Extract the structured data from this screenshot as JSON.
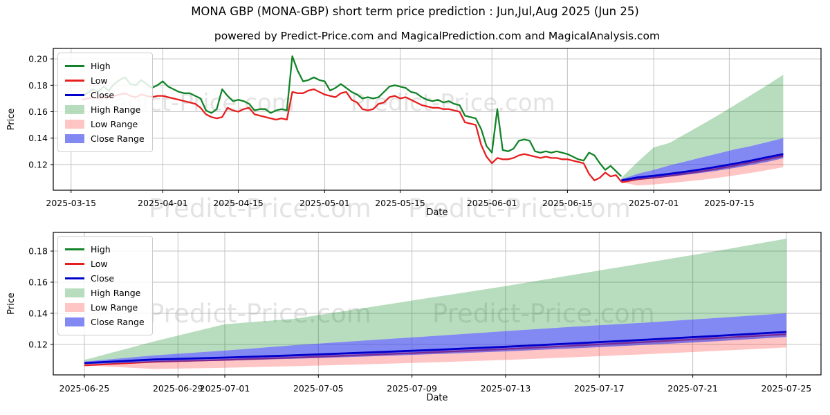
{
  "header": {
    "title": "MONA GBP (MONA-GBP) short term price prediction : Jun,Jul,Aug 2025 (Jun 25)",
    "subtitle": "powered by Predict-Price.com and MagicalPrediction.com and MagicalAnalysis.com"
  },
  "watermark": {
    "text": "Predict-Price.com"
  },
  "colors": {
    "high": "#128428",
    "low": "#e81e1e",
    "close": "#0000cd",
    "high_range": "rgba(0,134,20,0.28)",
    "low_range": "rgba(255,40,40,0.27)",
    "close_range": "rgba(42,52,232,0.58)",
    "grid": "#c2c2c2",
    "spine": "#000000",
    "watermark": "rgba(128,128,128,0.22)"
  },
  "legend": {
    "items": [
      {
        "label": "High",
        "type": "line",
        "color": "high"
      },
      {
        "label": "Low",
        "type": "line",
        "color": "low"
      },
      {
        "label": "Close",
        "type": "line",
        "color": "close"
      },
      {
        "label": "High Range",
        "type": "patch",
        "color": "high_range"
      },
      {
        "label": "Low Range",
        "type": "patch",
        "color": "low_range"
      },
      {
        "label": "Close Range",
        "type": "patch",
        "color": "close_range"
      }
    ]
  },
  "series": {
    "x_unit": "days since 2025-03-15",
    "high_history": [
      [
        2,
        0.172
      ],
      [
        3,
        0.174
      ],
      [
        4,
        0.177
      ],
      [
        5,
        0.175
      ],
      [
        6,
        0.179
      ],
      [
        7,
        0.176
      ],
      [
        8,
        0.181
      ],
      [
        9,
        0.184
      ],
      [
        10,
        0.186
      ],
      [
        11,
        0.181
      ],
      [
        12,
        0.18
      ],
      [
        13,
        0.184
      ],
      [
        14,
        0.181
      ],
      [
        15,
        0.178
      ],
      [
        16,
        0.18
      ],
      [
        17,
        0.183
      ],
      [
        18,
        0.179
      ],
      [
        19,
        0.177
      ],
      [
        20,
        0.175
      ],
      [
        21,
        0.174
      ],
      [
        22,
        0.174
      ],
      [
        23,
        0.172
      ],
      [
        24,
        0.17
      ],
      [
        25,
        0.161
      ],
      [
        26,
        0.159
      ],
      [
        27,
        0.162
      ],
      [
        28,
        0.177
      ],
      [
        29,
        0.172
      ],
      [
        30,
        0.168
      ],
      [
        31,
        0.169
      ],
      [
        32,
        0.168
      ],
      [
        33,
        0.166
      ],
      [
        34,
        0.161
      ],
      [
        35,
        0.162
      ],
      [
        36,
        0.162
      ],
      [
        37,
        0.159
      ],
      [
        38,
        0.161
      ],
      [
        39,
        0.162
      ],
      [
        40,
        0.161
      ],
      [
        41,
        0.202
      ],
      [
        42,
        0.191
      ],
      [
        43,
        0.183
      ],
      [
        44,
        0.184
      ],
      [
        45,
        0.186
      ],
      [
        46,
        0.184
      ],
      [
        47,
        0.183
      ],
      [
        48,
        0.176
      ],
      [
        49,
        0.178
      ],
      [
        50,
        0.181
      ],
      [
        51,
        0.178
      ],
      [
        52,
        0.175
      ],
      [
        53,
        0.173
      ],
      [
        54,
        0.17
      ],
      [
        55,
        0.171
      ],
      [
        56,
        0.17
      ],
      [
        57,
        0.171
      ],
      [
        58,
        0.175
      ],
      [
        59,
        0.179
      ],
      [
        60,
        0.18
      ],
      [
        61,
        0.179
      ],
      [
        62,
        0.178
      ],
      [
        63,
        0.175
      ],
      [
        64,
        0.174
      ],
      [
        65,
        0.171
      ],
      [
        66,
        0.169
      ],
      [
        67,
        0.168
      ],
      [
        68,
        0.169
      ],
      [
        69,
        0.167
      ],
      [
        70,
        0.168
      ],
      [
        71,
        0.166
      ],
      [
        72,
        0.165
      ],
      [
        73,
        0.157
      ],
      [
        74,
        0.156
      ],
      [
        75,
        0.155
      ],
      [
        76,
        0.147
      ],
      [
        77,
        0.134
      ],
      [
        78,
        0.129
      ],
      [
        79,
        0.162
      ],
      [
        80,
        0.131
      ],
      [
        81,
        0.13
      ],
      [
        82,
        0.132
      ],
      [
        83,
        0.138
      ],
      [
        84,
        0.139
      ],
      [
        85,
        0.138
      ],
      [
        86,
        0.13
      ],
      [
        87,
        0.129
      ],
      [
        88,
        0.13
      ],
      [
        89,
        0.129
      ],
      [
        90,
        0.13
      ],
      [
        91,
        0.129
      ],
      [
        92,
        0.128
      ],
      [
        93,
        0.126
      ],
      [
        94,
        0.124
      ],
      [
        95,
        0.123
      ],
      [
        96,
        0.129
      ],
      [
        97,
        0.127
      ],
      [
        98,
        0.121
      ],
      [
        99,
        0.116
      ],
      [
        100,
        0.119
      ],
      [
        101,
        0.115
      ],
      [
        102,
        0.111
      ]
    ],
    "low_history": [
      [
        2,
        0.169
      ],
      [
        3,
        0.17
      ],
      [
        4,
        0.171
      ],
      [
        5,
        0.17
      ],
      [
        6,
        0.172
      ],
      [
        7,
        0.171
      ],
      [
        8,
        0.172
      ],
      [
        9,
        0.173
      ],
      [
        10,
        0.174
      ],
      [
        11,
        0.172
      ],
      [
        12,
        0.171
      ],
      [
        13,
        0.173
      ],
      [
        14,
        0.172
      ],
      [
        15,
        0.171
      ],
      [
        16,
        0.172
      ],
      [
        17,
        0.172
      ],
      [
        18,
        0.171
      ],
      [
        19,
        0.17
      ],
      [
        20,
        0.169
      ],
      [
        21,
        0.168
      ],
      [
        22,
        0.167
      ],
      [
        23,
        0.166
      ],
      [
        24,
        0.163
      ],
      [
        25,
        0.158
      ],
      [
        26,
        0.156
      ],
      [
        27,
        0.155
      ],
      [
        28,
        0.156
      ],
      [
        29,
        0.163
      ],
      [
        30,
        0.161
      ],
      [
        31,
        0.16
      ],
      [
        32,
        0.162
      ],
      [
        33,
        0.163
      ],
      [
        34,
        0.158
      ],
      [
        35,
        0.157
      ],
      [
        36,
        0.156
      ],
      [
        37,
        0.155
      ],
      [
        38,
        0.154
      ],
      [
        39,
        0.155
      ],
      [
        40,
        0.154
      ],
      [
        41,
        0.175
      ],
      [
        42,
        0.174
      ],
      [
        43,
        0.174
      ],
      [
        44,
        0.176
      ],
      [
        45,
        0.177
      ],
      [
        46,
        0.175
      ],
      [
        47,
        0.173
      ],
      [
        48,
        0.172
      ],
      [
        49,
        0.171
      ],
      [
        50,
        0.174
      ],
      [
        51,
        0.175
      ],
      [
        52,
        0.169
      ],
      [
        53,
        0.167
      ],
      [
        54,
        0.162
      ],
      [
        55,
        0.161
      ],
      [
        56,
        0.162
      ],
      [
        57,
        0.166
      ],
      [
        58,
        0.167
      ],
      [
        59,
        0.171
      ],
      [
        60,
        0.172
      ],
      [
        61,
        0.17
      ],
      [
        62,
        0.171
      ],
      [
        63,
        0.169
      ],
      [
        64,
        0.167
      ],
      [
        65,
        0.165
      ],
      [
        66,
        0.164
      ],
      [
        67,
        0.163
      ],
      [
        68,
        0.163
      ],
      [
        69,
        0.162
      ],
      [
        70,
        0.162
      ],
      [
        71,
        0.161
      ],
      [
        72,
        0.16
      ],
      [
        73,
        0.152
      ],
      [
        74,
        0.151
      ],
      [
        75,
        0.15
      ],
      [
        76,
        0.135
      ],
      [
        77,
        0.126
      ],
      [
        78,
        0.121
      ],
      [
        79,
        0.125
      ],
      [
        80,
        0.124
      ],
      [
        81,
        0.124
      ],
      [
        82,
        0.125
      ],
      [
        83,
        0.127
      ],
      [
        84,
        0.128
      ],
      [
        85,
        0.127
      ],
      [
        86,
        0.126
      ],
      [
        87,
        0.125
      ],
      [
        88,
        0.126
      ],
      [
        89,
        0.125
      ],
      [
        90,
        0.125
      ],
      [
        91,
        0.124
      ],
      [
        92,
        0.124
      ],
      [
        93,
        0.123
      ],
      [
        94,
        0.122
      ],
      [
        95,
        0.121
      ],
      [
        96,
        0.113
      ],
      [
        97,
        0.108
      ],
      [
        98,
        0.11
      ],
      [
        99,
        0.114
      ],
      [
        100,
        0.111
      ],
      [
        101,
        0.112
      ],
      [
        102,
        0.107
      ]
    ],
    "prediction": {
      "days": [
        102,
        105,
        108,
        111,
        114,
        117,
        120,
        123,
        126,
        129,
        132
      ],
      "high_top": [
        0.11,
        0.122,
        0.133,
        0.1365,
        0.1435,
        0.1505,
        0.1575,
        0.165,
        0.1725,
        0.18,
        0.188
      ],
      "close_top": [
        0.109,
        0.113,
        0.116,
        0.1195,
        0.1225,
        0.1255,
        0.1285,
        0.1315,
        0.134,
        0.137,
        0.14
      ],
      "close": [
        0.108,
        0.1103,
        0.1115,
        0.113,
        0.1147,
        0.1165,
        0.1185,
        0.1207,
        0.123,
        0.1255,
        0.128
      ],
      "close_bottom": [
        0.1072,
        0.1085,
        0.1095,
        0.1108,
        0.1122,
        0.1138,
        0.1155,
        0.1175,
        0.1197,
        0.122,
        0.1248
      ],
      "low": [
        0.1065,
        0.1088,
        0.11,
        0.1115,
        0.1132,
        0.115,
        0.117,
        0.1192,
        0.1215,
        0.124,
        0.1265
      ],
      "low_bottom": [
        0.1065,
        0.1042,
        0.105,
        0.106,
        0.1072,
        0.1085,
        0.11,
        0.1118,
        0.1137,
        0.1158,
        0.118
      ]
    }
  },
  "chart_data": [
    {
      "type": "line",
      "name": "history-and-forecast",
      "xlabel": "Date",
      "ylabel": "Price",
      "x_domain": [
        -3.3,
        139
      ],
      "y_domain": [
        0.1006,
        0.2079
      ],
      "xticks": [
        {
          "d": 0,
          "label": "2025-03-15"
        },
        {
          "d": 17,
          "label": "2025-04-01"
        },
        {
          "d": 31,
          "label": "2025-04-15"
        },
        {
          "d": 47,
          "label": "2025-05-01"
        },
        {
          "d": 61,
          "label": "2025-05-15"
        },
        {
          "d": 78,
          "label": "2025-06-01"
        },
        {
          "d": 92,
          "label": "2025-06-15"
        },
        {
          "d": 108,
          "label": "2025-07-01"
        },
        {
          "d": 122,
          "label": "2025-07-15"
        }
      ],
      "yticks": [
        {
          "v": 0.12,
          "label": "0.12"
        },
        {
          "v": 0.14,
          "label": "0.14"
        },
        {
          "v": 0.16,
          "label": "0.16"
        },
        {
          "v": 0.18,
          "label": "0.18"
        },
        {
          "v": 0.2,
          "label": "0.20"
        }
      ],
      "series_used": [
        "high_history",
        "low_history",
        "prediction"
      ]
    },
    {
      "type": "line",
      "name": "forecast-detail",
      "xlabel": "Date",
      "ylabel": "Price",
      "x_domain": [
        100.67,
        133.48
      ],
      "y_domain": [
        0.1004,
        0.192
      ],
      "xticks": [
        {
          "d": 102,
          "label": "2025-06-25"
        },
        {
          "d": 106,
          "label": "2025-06-29"
        },
        {
          "d": 108,
          "label": "2025-07-01"
        },
        {
          "d": 112,
          "label": "2025-07-05"
        },
        {
          "d": 116,
          "label": "2025-07-09"
        },
        {
          "d": 120,
          "label": "2025-07-13"
        },
        {
          "d": 124,
          "label": "2025-07-17"
        },
        {
          "d": 128,
          "label": "2025-07-21"
        },
        {
          "d": 132,
          "label": "2025-07-25"
        }
      ],
      "yticks": [
        {
          "v": 0.12,
          "label": "0.12"
        },
        {
          "v": 0.14,
          "label": "0.14"
        },
        {
          "v": 0.16,
          "label": "0.16"
        },
        {
          "v": 0.18,
          "label": "0.18"
        }
      ],
      "series_used": [
        "prediction"
      ]
    }
  ]
}
